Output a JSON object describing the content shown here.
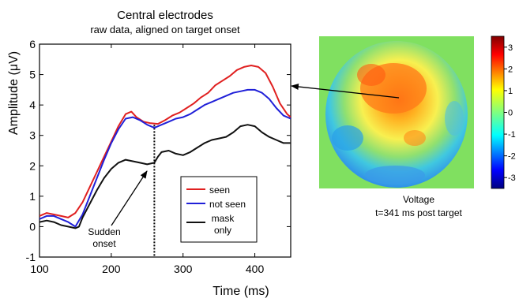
{
  "chart_data": [
    {
      "type": "line",
      "title": "Central electrodes",
      "subtitle": "raw data, aligned on target onset",
      "xlabel": "Time (ms)",
      "ylabel": "Amplitude (μV)",
      "xlim": [
        100,
        450
      ],
      "ylim": [
        -1,
        6
      ],
      "xticks": [
        100,
        200,
        300,
        400
      ],
      "yticks": [
        -1,
        0,
        1,
        2,
        3,
        4,
        5,
        6
      ],
      "grid": false,
      "legend": "bottom-right",
      "series": [
        {
          "name": "seen",
          "color": "#e02020",
          "points": [
            [
              100,
              0.35
            ],
            [
              110,
              0.45
            ],
            [
              120,
              0.4
            ],
            [
              130,
              0.35
            ],
            [
              140,
              0.3
            ],
            [
              150,
              0.45
            ],
            [
              160,
              0.8
            ],
            [
              170,
              1.3
            ],
            [
              180,
              1.8
            ],
            [
              190,
              2.3
            ],
            [
              200,
              2.8
            ],
            [
              210,
              3.3
            ],
            [
              220,
              3.7
            ],
            [
              228,
              3.78
            ],
            [
              235,
              3.6
            ],
            [
              245,
              3.45
            ],
            [
              255,
              3.4
            ],
            [
              265,
              3.38
            ],
            [
              275,
              3.5
            ],
            [
              285,
              3.65
            ],
            [
              295,
              3.75
            ],
            [
              305,
              3.9
            ],
            [
              315,
              4.05
            ],
            [
              325,
              4.25
            ],
            [
              335,
              4.4
            ],
            [
              345,
              4.65
            ],
            [
              355,
              4.8
            ],
            [
              365,
              4.95
            ],
            [
              375,
              5.15
            ],
            [
              385,
              5.25
            ],
            [
              395,
              5.3
            ],
            [
              405,
              5.25
            ],
            [
              415,
              5.05
            ],
            [
              425,
              4.6
            ],
            [
              435,
              4.05
            ],
            [
              445,
              3.7
            ],
            [
              450,
              3.6
            ]
          ]
        },
        {
          "name": "not seen",
          "color": "#2020d8",
          "points": [
            [
              100,
              0.25
            ],
            [
              110,
              0.35
            ],
            [
              120,
              0.35
            ],
            [
              130,
              0.25
            ],
            [
              140,
              0.15
            ],
            [
              150,
              0.0
            ],
            [
              160,
              0.4
            ],
            [
              170,
              1.0
            ],
            [
              180,
              1.6
            ],
            [
              190,
              2.2
            ],
            [
              200,
              2.75
            ],
            [
              210,
              3.2
            ],
            [
              220,
              3.55
            ],
            [
              230,
              3.6
            ],
            [
              240,
              3.5
            ],
            [
              250,
              3.35
            ],
            [
              260,
              3.25
            ],
            [
              270,
              3.35
            ],
            [
              280,
              3.45
            ],
            [
              290,
              3.55
            ],
            [
              300,
              3.6
            ],
            [
              310,
              3.7
            ],
            [
              320,
              3.85
            ],
            [
              330,
              4.0
            ],
            [
              340,
              4.1
            ],
            [
              350,
              4.2
            ],
            [
              360,
              4.3
            ],
            [
              370,
              4.4
            ],
            [
              380,
              4.45
            ],
            [
              390,
              4.5
            ],
            [
              400,
              4.5
            ],
            [
              410,
              4.4
            ],
            [
              420,
              4.2
            ],
            [
              430,
              3.9
            ],
            [
              440,
              3.65
            ],
            [
              450,
              3.55
            ]
          ]
        },
        {
          "name": "mask only",
          "color": "#111111",
          "points": [
            [
              100,
              0.15
            ],
            [
              110,
              0.2
            ],
            [
              120,
              0.15
            ],
            [
              130,
              0.05
            ],
            [
              140,
              0.0
            ],
            [
              150,
              -0.05
            ],
            [
              155,
              0.0
            ],
            [
              160,
              0.3
            ],
            [
              170,
              0.75
            ],
            [
              180,
              1.2
            ],
            [
              190,
              1.6
            ],
            [
              200,
              1.9
            ],
            [
              210,
              2.1
            ],
            [
              220,
              2.2
            ],
            [
              230,
              2.15
            ],
            [
              240,
              2.1
            ],
            [
              250,
              2.05
            ],
            [
              260,
              2.1
            ],
            [
              265,
              2.3
            ],
            [
              270,
              2.45
            ],
            [
              280,
              2.5
            ],
            [
              290,
              2.4
            ],
            [
              300,
              2.35
            ],
            [
              310,
              2.45
            ],
            [
              320,
              2.6
            ],
            [
              330,
              2.75
            ],
            [
              340,
              2.85
            ],
            [
              350,
              2.9
            ],
            [
              360,
              2.95
            ],
            [
              370,
              3.1
            ],
            [
              380,
              3.3
            ],
            [
              390,
              3.35
            ],
            [
              400,
              3.3
            ],
            [
              410,
              3.1
            ],
            [
              420,
              2.95
            ],
            [
              430,
              2.85
            ],
            [
              440,
              2.75
            ],
            [
              450,
              2.75
            ]
          ]
        }
      ],
      "marker_line": {
        "x": 260
      },
      "annotation": {
        "line1": "Sudden",
        "line2": "onset",
        "target": [
          260,
          2.05
        ]
      }
    },
    {
      "type": "heatmap",
      "label_line1": "Voltage",
      "label_line2": "t=341 ms post target",
      "colorbar_ticks": [
        3,
        2,
        1,
        0,
        -1,
        -2,
        -3
      ],
      "colorbar_range": [
        -3.5,
        3.5
      ],
      "background_color": "#80e060"
    }
  ],
  "icons": {
    "arrow": "arrow-icon"
  }
}
